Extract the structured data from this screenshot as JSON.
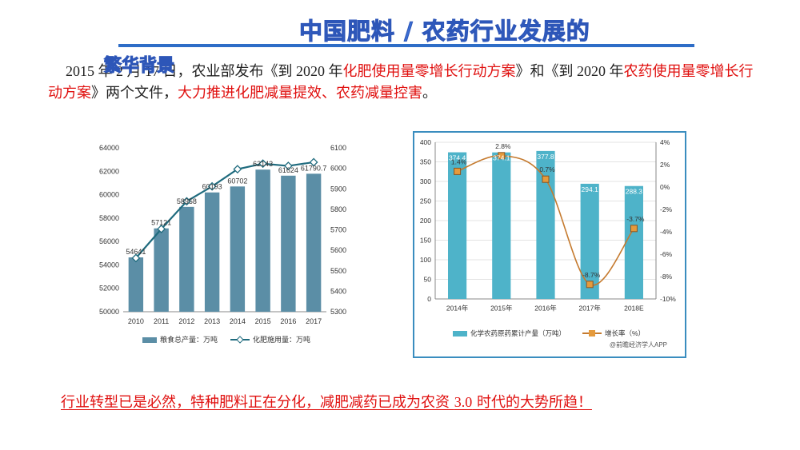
{
  "slide": {
    "title": "中国肥料 / 农药行业发展的",
    "title_overflow": "繁华背景",
    "para_date": "2015 年 2 月 17 日，",
    "para_ministry": "农业部发布《到 2020 年",
    "para_red1": "化肥使用量零增长行动方案",
    "para_and": "》和《到 2020 年",
    "para_red2": "农药使用量零增长行动方案",
    "para_tail1": "》两个文件，",
    "para_red3": "大力推进化肥减量提效、农药减量控害",
    "para_end": "。",
    "bottom_a": "行业转型已是必然，特种肥料正在分化，减肥减药已成为农资 ",
    "bottom_num": "3.0",
    "bottom_b": " 时代的大势所趋！"
  },
  "colors": {
    "title": "#3b6fd4",
    "accent_red": "#e0100f",
    "bar_left": "#5b8ea6",
    "line_left": "#1f6b7e",
    "bar_right": "#4eb3c9",
    "line_right": "#c57a2e",
    "marker_right": "#e59a3c"
  },
  "chart_data": [
    {
      "type": "bar",
      "categories": [
        "2010",
        "2011",
        "2012",
        "2013",
        "2014",
        "2015",
        "2016",
        "2017"
      ],
      "series": [
        {
          "name": "粮食总产量：万吨",
          "type": "bar",
          "axis": "left",
          "values": [
            54641,
            57121,
            58958,
            60193,
            60702,
            62143,
            61624,
            61790.7
          ],
          "labels": [
            "54641",
            "57121",
            "58958",
            "60193",
            "60702",
            "62143",
            "61624",
            "61790.7"
          ]
        },
        {
          "name": "化肥施用量：万吨",
          "type": "line",
          "axis": "right",
          "values": [
            5562,
            5704,
            5839,
            5912,
            5996,
            6023,
            6012,
            6030
          ]
        }
      ],
      "ylim_left": [
        50000,
        64000
      ],
      "yticks_left": [
        "50000",
        "52000",
        "54000",
        "56000",
        "58000",
        "60000",
        "62000",
        "64000"
      ],
      "ylim_right": [
        5300,
        6100
      ],
      "yticks_right": [
        "5300",
        "5400",
        "5500",
        "5600",
        "5700",
        "5800",
        "5900",
        "6000",
        "6100"
      ],
      "legend": "bottom"
    },
    {
      "type": "bar",
      "categories": [
        "2014年",
        "2015年",
        "2016年",
        "2017年",
        "2018E"
      ],
      "series": [
        {
          "name": "化学农药原药累计产量（万吨）",
          "type": "bar",
          "axis": "left",
          "values": [
            374.4,
            374.1,
            377.8,
            294.1,
            288.3
          ],
          "labels": [
            "374.4",
            "374.1",
            "377.8",
            "294.1",
            "288.3"
          ]
        },
        {
          "name": "增长率（%）",
          "type": "line",
          "axis": "right",
          "values": [
            1.4,
            2.8,
            0.7,
            -8.7,
            -3.7
          ],
          "labels": [
            "1.4%",
            "2.8%",
            "0.7%",
            "-8.7%",
            "-3.7%"
          ]
        }
      ],
      "ylim_left": [
        0,
        400
      ],
      "yticks_left": [
        "0",
        "50",
        "100",
        "150",
        "200",
        "250",
        "300",
        "350",
        "400"
      ],
      "ylim_right": [
        -10,
        4
      ],
      "yticks_right": [
        "-10%",
        "-8%",
        "-6%",
        "-4%",
        "-2%",
        "0%",
        "2%",
        "4%"
      ],
      "legend": "bottom",
      "source": "@前瞻经济学人APP"
    }
  ]
}
